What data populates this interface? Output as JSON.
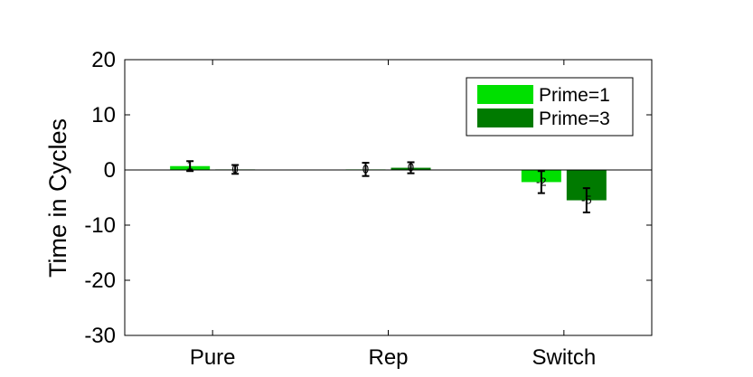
{
  "chart_data": {
    "type": "bar",
    "title": "",
    "xlabel": "",
    "ylabel": "Time in Cycles",
    "ylim": [
      -30,
      20
    ],
    "yticks": [
      20,
      10,
      0,
      -10,
      -20,
      -30
    ],
    "categories": [
      "Pure",
      "Rep",
      "Switch"
    ],
    "series": [
      {
        "name": "Prime=1",
        "color": "#00e000",
        "values": [
          0.7,
          0.1,
          -2.2
        ],
        "errors": [
          0.9,
          1.2,
          2.0
        ],
        "labels": [
          "1",
          "0",
          "-2"
        ]
      },
      {
        "name": "Prime=3",
        "color": "#007a00",
        "values": [
          0.1,
          0.4,
          -5.5
        ],
        "errors": [
          0.8,
          1.0,
          2.2
        ],
        "labels": [
          "0",
          "0",
          "-5"
        ]
      }
    ],
    "grid": false,
    "legend_position": "top-right"
  }
}
